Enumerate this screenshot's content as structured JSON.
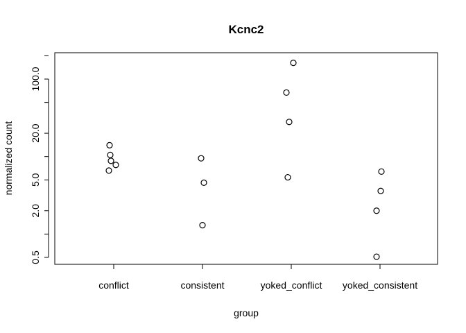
{
  "chart_data": {
    "type": "scatter",
    "title": "Kcnc2",
    "xlabel": "group",
    "ylabel": "normalized count",
    "y_scale": "log",
    "ylim": [
      0.4,
      200
    ],
    "y_ticks": [
      0.5,
      2.0,
      5.0,
      20.0,
      100.0
    ],
    "y_tick_labels": [
      "0.5",
      "2.0",
      "5.0",
      "20.0",
      "100.0"
    ],
    "categories": [
      "conflict",
      "consistent",
      "yoked_conflict",
      "yoked_consistent"
    ],
    "points": [
      {
        "group": "conflict",
        "y": 14.0
      },
      {
        "group": "conflict",
        "y": 10.5
      },
      {
        "group": "conflict",
        "y": 8.8
      },
      {
        "group": "conflict",
        "y": 7.8
      },
      {
        "group": "conflict",
        "y": 6.6
      },
      {
        "group": "consistent",
        "y": 9.5
      },
      {
        "group": "consistent",
        "y": 4.6
      },
      {
        "group": "consistent",
        "y": 1.3
      },
      {
        "group": "yoked_conflict",
        "y": 162
      },
      {
        "group": "yoked_conflict",
        "y": 67
      },
      {
        "group": "yoked_conflict",
        "y": 28
      },
      {
        "group": "yoked_conflict",
        "y": 5.4
      },
      {
        "group": "yoked_consistent",
        "y": 6.4
      },
      {
        "group": "yoked_consistent",
        "y": 3.6
      },
      {
        "group": "yoked_consistent",
        "y": 2.0
      },
      {
        "group": "yoked_consistent",
        "y": 0.51
      }
    ],
    "grid": false,
    "legend": "none"
  }
}
